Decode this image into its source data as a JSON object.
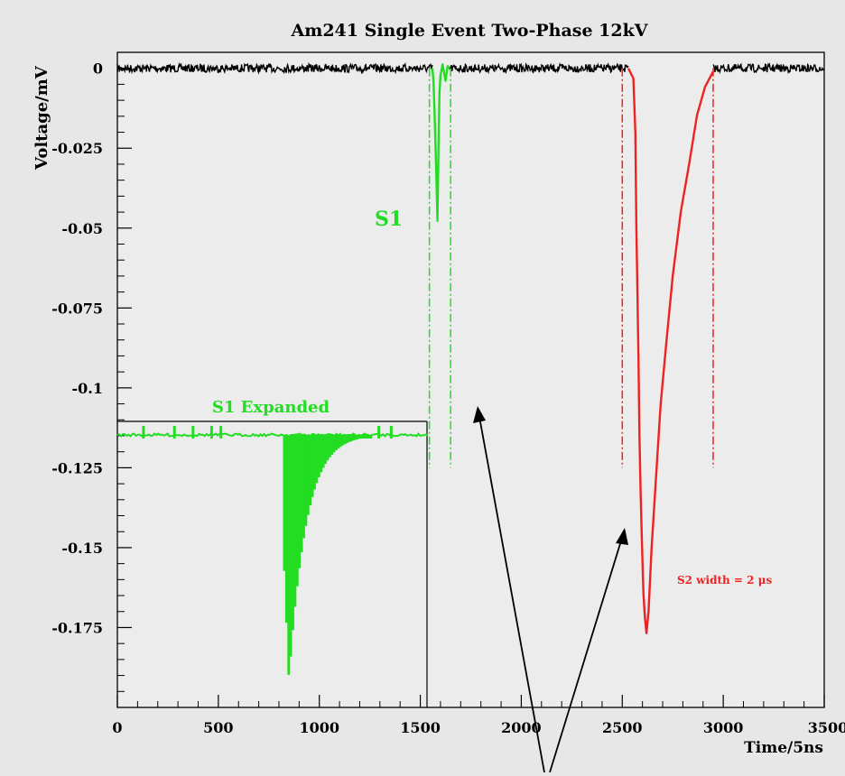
{
  "chart_data": {
    "type": "line",
    "title": "Am241 Single Event Two-Phase 12kV",
    "xlabel": "Time/5ns",
    "ylabel": "Voltage/mV",
    "xlim": [
      0,
      3500
    ],
    "ylim": [
      -0.2,
      0.005
    ],
    "x_ticks": [
      0,
      500,
      1000,
      1500,
      2000,
      2500,
      3000,
      3500
    ],
    "y_ticks": [
      0,
      -0.025,
      -0.05,
      -0.075,
      -0.1,
      -0.125,
      -0.15,
      -0.175
    ],
    "y_tick_labels": [
      "0",
      "-0.025",
      "-0.05",
      "-0.075",
      "-0.1",
      "-0.125",
      "-0.15",
      "-0.175"
    ],
    "grid": false,
    "colors": {
      "baseline": "#000000",
      "s1": "#22dd22",
      "s2": "#ee2222",
      "background": "#e7e7e7"
    },
    "series": [
      {
        "name": "S1",
        "points": [
          [
            1560,
            0
          ],
          [
            1565,
            -0.004
          ],
          [
            1570,
            -0.012
          ],
          [
            1578,
            -0.03
          ],
          [
            1585,
            -0.048
          ],
          [
            1590,
            -0.025
          ],
          [
            1595,
            -0.008
          ],
          [
            1600,
            -0.002
          ],
          [
            1610,
            0.001
          ],
          [
            1625,
            -0.004
          ],
          [
            1635,
            0.001
          ],
          [
            1645,
            0
          ]
        ]
      },
      {
        "name": "S2",
        "points": [
          [
            2530,
            0
          ],
          [
            2555,
            -0.003
          ],
          [
            2565,
            -0.02
          ],
          [
            2570,
            -0.05
          ],
          [
            2575,
            -0.07
          ],
          [
            2580,
            -0.09
          ],
          [
            2585,
            -0.115
          ],
          [
            2590,
            -0.13
          ],
          [
            2598,
            -0.15
          ],
          [
            2605,
            -0.165
          ],
          [
            2612,
            -0.172
          ],
          [
            2620,
            -0.177
          ],
          [
            2630,
            -0.17
          ],
          [
            2645,
            -0.15
          ],
          [
            2665,
            -0.13
          ],
          [
            2690,
            -0.105
          ],
          [
            2720,
            -0.085
          ],
          [
            2750,
            -0.065
          ],
          [
            2790,
            -0.045
          ],
          [
            2830,
            -0.03
          ],
          [
            2870,
            -0.015
          ],
          [
            2910,
            -0.006
          ],
          [
            2950,
            -0.001
          ]
        ]
      }
    ],
    "window_markers": {
      "s1": [
        1545,
        1650
      ],
      "s2": [
        2500,
        2950
      ],
      "bottom": -0.125
    },
    "annotations": {
      "s1_label": "S1",
      "s2_width": "S2 width = 2 μs"
    },
    "inset": {
      "title": "S1 Expanded",
      "x_range": [
        0,
        1000
      ],
      "pulse": {
        "peak_x": 550,
        "peak": -0.19,
        "decay_end_x": 820
      }
    }
  }
}
